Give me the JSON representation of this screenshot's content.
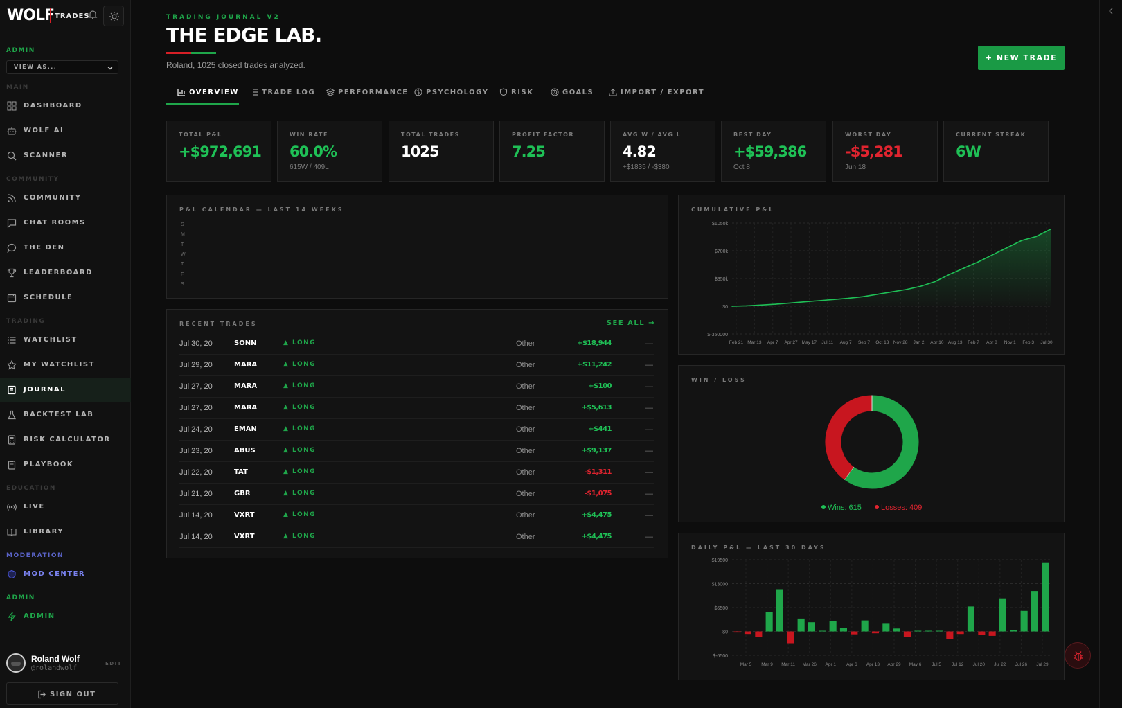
{
  "brand": {
    "logo": "WOLF",
    "sub": "TRADES"
  },
  "sidebar": {
    "admin_label": "ADMIN",
    "view_as": "VIEW AS...",
    "sections": {
      "main": "MAIN",
      "community": "COMMUNITY",
      "trading": "TRADING",
      "education": "EDUCATION",
      "moderation": "MODERATION",
      "admin": "ADMIN"
    },
    "items": [
      {
        "label": "DASHBOARD",
        "icon": "grid-icon"
      },
      {
        "label": "WOLF AI",
        "icon": "robot-icon"
      },
      {
        "label": "SCANNER",
        "icon": "search-icon"
      },
      {
        "label": "COMMUNITY",
        "icon": "rss-icon"
      },
      {
        "label": "CHAT ROOMS",
        "icon": "chat-icon"
      },
      {
        "label": "THE DEN",
        "icon": "bubble-icon"
      },
      {
        "label": "LEADERBOARD",
        "icon": "trophy-icon"
      },
      {
        "label": "SCHEDULE",
        "icon": "calendar-icon"
      },
      {
        "label": "WATCHLIST",
        "icon": "list-icon"
      },
      {
        "label": "MY WATCHLIST",
        "icon": "star-icon"
      },
      {
        "label": "JOURNAL",
        "icon": "book-icon"
      },
      {
        "label": "BACKTEST LAB",
        "icon": "flask-icon"
      },
      {
        "label": "RISK CALCULATOR",
        "icon": "calculator-icon"
      },
      {
        "label": "PLAYBOOK",
        "icon": "clipboard-icon"
      },
      {
        "label": "LIVE",
        "icon": "broadcast-icon"
      },
      {
        "label": "LIBRARY",
        "icon": "open-book-icon"
      },
      {
        "label": "MOD CENTER",
        "icon": "shield-icon"
      },
      {
        "label": "ADMIN",
        "icon": "bolt-icon"
      }
    ],
    "user": {
      "name": "Roland Wolf",
      "handle": "@rolandwolf",
      "edit": "EDIT"
    },
    "sign_out": "SIGN OUT"
  },
  "header": {
    "eyebrow": "TRADING JOURNAL V2",
    "title": "THE EDGE LAB.",
    "subtitle": "Roland, 1025 closed trades analyzed.",
    "new_trade": "+ NEW TRADE"
  },
  "tabs": [
    "OVERVIEW",
    "TRADE LOG",
    "PERFORMANCE",
    "PSYCHOLOGY",
    "RISK",
    "GOALS",
    "IMPORT / EXPORT"
  ],
  "stats": [
    {
      "label": "TOTAL P&L",
      "value": "+$972,691",
      "sub": "",
      "color": "#1fc056"
    },
    {
      "label": "WIN RATE",
      "value": "60.0%",
      "sub": "615W / 409L",
      "color": "#1fc056"
    },
    {
      "label": "TOTAL TRADES",
      "value": "1025",
      "sub": "",
      "color": "#ffffff"
    },
    {
      "label": "PROFIT FACTOR",
      "value": "7.25",
      "sub": "",
      "color": "#1fc056"
    },
    {
      "label": "AVG W / AVG L",
      "value": "4.82",
      "sub": "+$1835 / -$380",
      "color": "#ffffff"
    },
    {
      "label": "BEST DAY",
      "value": "+$59,386",
      "sub": "Oct 8",
      "color": "#1fc056"
    },
    {
      "label": "WORST DAY",
      "value": "-$5,281",
      "sub": "Jun 18",
      "color": "#e0242f"
    },
    {
      "label": "CURRENT STREAK",
      "value": "6W",
      "sub": "",
      "color": "#1fc056"
    }
  ],
  "calendar": {
    "title": "P&L CALENDAR — LAST 14 WEEKS",
    "days": [
      "S",
      "M",
      "T",
      "W",
      "T",
      "F",
      "S"
    ]
  },
  "recent": {
    "title": "RECENT TRADES",
    "see_all": "SEE ALL →",
    "rows": [
      {
        "date": "Jul 30, 20",
        "symbol": "SONN",
        "side": "▲ LONG",
        "strategy": "Other",
        "pnl": "+$18,944",
        "note": "—",
        "positive": true
      },
      {
        "date": "Jul 29, 20",
        "symbol": "MARA",
        "side": "▲ LONG",
        "strategy": "Other",
        "pnl": "+$11,242",
        "note": "—",
        "positive": true
      },
      {
        "date": "Jul 27, 20",
        "symbol": "MARA",
        "side": "▲ LONG",
        "strategy": "Other",
        "pnl": "+$100",
        "note": "—",
        "positive": true
      },
      {
        "date": "Jul 27, 20",
        "symbol": "MARA",
        "side": "▲ LONG",
        "strategy": "Other",
        "pnl": "+$5,613",
        "note": "—",
        "positive": true
      },
      {
        "date": "Jul 24, 20",
        "symbol": "EMAN",
        "side": "▲ LONG",
        "strategy": "Other",
        "pnl": "+$441",
        "note": "—",
        "positive": true
      },
      {
        "date": "Jul 23, 20",
        "symbol": "ABUS",
        "side": "▲ LONG",
        "strategy": "Other",
        "pnl": "+$9,137",
        "note": "—",
        "positive": true
      },
      {
        "date": "Jul 22, 20",
        "symbol": "TAT",
        "side": "▲ LONG",
        "strategy": "Other",
        "pnl": "-$1,311",
        "note": "—",
        "positive": false
      },
      {
        "date": "Jul 21, 20",
        "symbol": "GBR",
        "side": "▲ LONG",
        "strategy": "Other",
        "pnl": "-$1,075",
        "note": "—",
        "positive": false
      },
      {
        "date": "Jul 14, 20",
        "symbol": "VXRT",
        "side": "▲ LONG",
        "strategy": "Other",
        "pnl": "+$4,475",
        "note": "—",
        "positive": true
      },
      {
        "date": "Jul 14, 20",
        "symbol": "VXRT",
        "side": "▲ LONG",
        "strategy": "Other",
        "pnl": "+$4,475",
        "note": "—",
        "positive": true
      }
    ]
  },
  "winloss": {
    "title": "WIN / LOSS",
    "wins_label": "Wins: 615",
    "losses_label": "Losses: 409"
  },
  "colors": {
    "green": "#1fa64a",
    "red": "#d61f26",
    "bg": "#0d0d0d"
  },
  "chart_data": [
    {
      "type": "area",
      "title": "CUMULATIVE P&L",
      "y_ticks": [
        "$1050k",
        "$700k",
        "$350k",
        "$0",
        "$-350000"
      ],
      "ylim": [
        -350000,
        1050000
      ],
      "x_ticks": [
        "Feb 21",
        "Mar 13",
        "Apr 7",
        "Apr 27",
        "May 17",
        "Jul 11",
        "Aug 7",
        "Sep 7",
        "Oct 13",
        "Nov 28",
        "Jan 2",
        "Apr 10",
        "Aug 13",
        "Feb 7",
        "Apr 8",
        "Nov 1",
        "Feb 3",
        "Jul 30"
      ],
      "values": [
        0,
        5000,
        15000,
        25000,
        40000,
        55000,
        70000,
        85000,
        100000,
        120000,
        150000,
        180000,
        210000,
        250000,
        310000,
        400000,
        480000,
        560000,
        650000,
        740000,
        830000,
        880000,
        972691
      ],
      "grid": true
    },
    {
      "type": "pie",
      "title": "WIN / LOSS",
      "labels": [
        "Wins",
        "Losses"
      ],
      "values": [
        615,
        409
      ],
      "colors": [
        "#1fa64a",
        "#c8161f"
      ]
    },
    {
      "type": "bar",
      "title": "DAILY P&L — LAST 30 DAYS",
      "y_ticks": [
        "$19500",
        "$13000",
        "$6500",
        "$0",
        "$-6500"
      ],
      "ylim": [
        -6500,
        19500
      ],
      "x_ticks": [
        "Mar 5",
        "Mar 9",
        "Mar 11",
        "Mar 26",
        "Apr 1",
        "Apr 6",
        "Apr 13",
        "Apr 29",
        "May 6",
        "Jul 5",
        "Jul 12",
        "Jul 20",
        "Jul 22",
        "Jul 26",
        "Jul 29"
      ],
      "values": [
        -300,
        -700,
        -1500,
        5300,
        11500,
        -3200,
        3500,
        2500,
        100,
        2800,
        900,
        -800,
        3000,
        -500,
        2100,
        800,
        -1500,
        0,
        0,
        0,
        -2000,
        -700,
        6800,
        -900,
        -1200,
        9000,
        400,
        5600,
        11000,
        18800
      ],
      "grid": true
    }
  ]
}
